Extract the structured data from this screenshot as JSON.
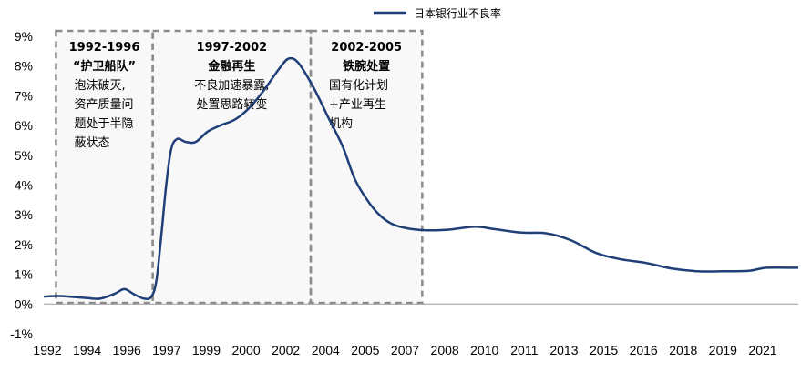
{
  "chart_data": {
    "type": "line",
    "title": "",
    "xlabel": "",
    "ylabel": "",
    "ylim": [
      -1,
      9
    ],
    "y_ticks": [
      -1,
      0,
      1,
      2,
      3,
      4,
      5,
      6,
      7,
      8,
      9
    ],
    "y_tick_labels": [
      "-1%",
      "0%",
      "1%",
      "2%",
      "3%",
      "4%",
      "5%",
      "6%",
      "7%",
      "8%",
      "9%"
    ],
    "x_tick_labels": [
      "1992",
      "1994",
      "1996",
      "1997",
      "1999",
      "2000",
      "2002",
      "2004",
      "2005",
      "2007",
      "2008",
      "2010",
      "2011",
      "2013",
      "2015",
      "2016",
      "2018",
      "2019",
      "2021"
    ],
    "xlim": [
      1992,
      2022.8
    ],
    "legend": {
      "position": "top-right"
    },
    "grid": false,
    "series": [
      {
        "name": "日本银行业不良率",
        "color": "#1f3f78",
        "points": [
          [
            1992.0,
            0.25
          ],
          [
            1992.6,
            0.27
          ],
          [
            1993.2,
            0.24
          ],
          [
            1993.8,
            0.2
          ],
          [
            1994.3,
            0.18
          ],
          [
            1994.9,
            0.35
          ],
          [
            1995.3,
            0.5
          ],
          [
            1995.7,
            0.32
          ],
          [
            1996.1,
            0.18
          ],
          [
            1996.4,
            0.25
          ],
          [
            1996.6,
            0.8
          ],
          [
            1996.8,
            2.3
          ],
          [
            1997.0,
            4.0
          ],
          [
            1997.2,
            5.2
          ],
          [
            1997.45,
            5.55
          ],
          [
            1997.8,
            5.45
          ],
          [
            1998.2,
            5.45
          ],
          [
            1998.7,
            5.8
          ],
          [
            1999.2,
            6.0
          ],
          [
            1999.8,
            6.2
          ],
          [
            2000.4,
            6.6
          ],
          [
            2001.0,
            7.2
          ],
          [
            2001.6,
            7.9
          ],
          [
            2002.0,
            8.25
          ],
          [
            2002.4,
            8.1
          ],
          [
            2003.0,
            7.3
          ],
          [
            2003.6,
            6.3
          ],
          [
            2004.2,
            5.3
          ],
          [
            2004.7,
            4.2
          ],
          [
            2005.2,
            3.5
          ],
          [
            2005.7,
            3.0
          ],
          [
            2006.2,
            2.7
          ],
          [
            2006.8,
            2.55
          ],
          [
            2007.6,
            2.48
          ],
          [
            2008.5,
            2.5
          ],
          [
            2009.6,
            2.6
          ],
          [
            2010.4,
            2.52
          ],
          [
            2011.5,
            2.4
          ],
          [
            2012.5,
            2.38
          ],
          [
            2013.5,
            2.15
          ],
          [
            2014.6,
            1.7
          ],
          [
            2015.6,
            1.5
          ],
          [
            2016.6,
            1.38
          ],
          [
            2017.6,
            1.2
          ],
          [
            2018.7,
            1.1
          ],
          [
            2019.7,
            1.1
          ],
          [
            2020.8,
            1.12
          ],
          [
            2021.5,
            1.22
          ],
          [
            2022.8,
            1.22
          ]
        ]
      }
    ],
    "annotations": [
      {
        "x_start": 1992.5,
        "x_end": 1996.45,
        "title": [
          "1992-1996",
          "“护卫船队”"
        ],
        "body": [
          "泡沫破灭,",
          "资产质量问",
          "题处于半隐",
          "蔽状态"
        ],
        "align": "left"
      },
      {
        "x_start": 1996.45,
        "x_end": 2002.9,
        "title": [
          "1997-2002",
          "金融再生"
        ],
        "body": [
          "不良加速暴露,",
          "处置思路转变"
        ],
        "align": "center"
      },
      {
        "x_start": 2002.9,
        "x_end": 2007.45,
        "title": [
          "2002-2005",
          "铁腕处置"
        ],
        "body": [
          "国有化计划",
          "+产业再生",
          "机构"
        ],
        "align": "left"
      }
    ]
  }
}
